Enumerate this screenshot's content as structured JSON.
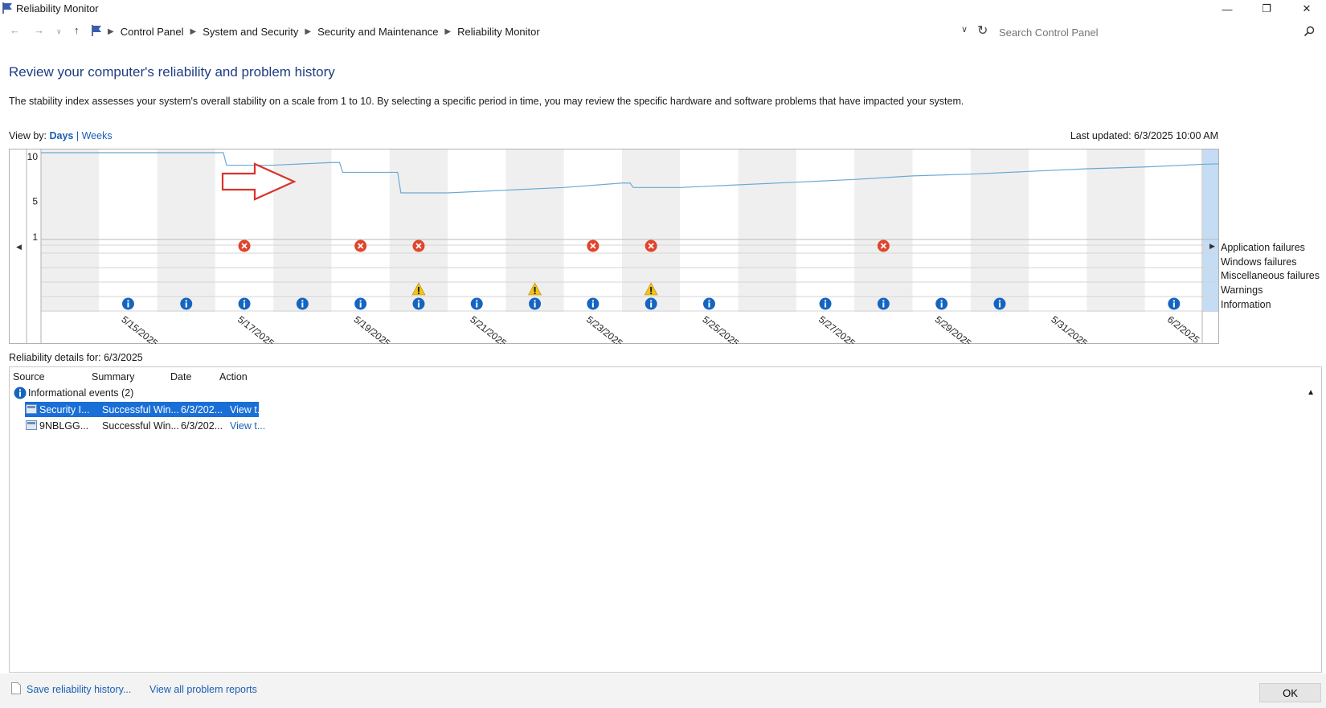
{
  "window": {
    "title": "Reliability Monitor"
  },
  "breadcrumbs": [
    "Control Panel",
    "System and Security",
    "Security and Maintenance",
    "Reliability Monitor"
  ],
  "search": {
    "placeholder": "Search Control Panel",
    "value": ""
  },
  "heading": "Review your computer's reliability and problem history",
  "description": "The stability index assesses your system's overall stability on a scale from 1 to 10. By selecting a specific period in time, you may review the specific hardware and software problems that have impacted your system.",
  "view_by": {
    "label": "View by:",
    "days": "Days",
    "separator": "|",
    "weeks": "Weeks",
    "selected": "Days"
  },
  "last_updated": "Last updated: 6/3/2025 10:00 AM",
  "chart_data": {
    "type": "line",
    "title": "",
    "y_ticks": [
      "10",
      "5",
      "1"
    ],
    "ylim": [
      1,
      10
    ],
    "legend": [
      "Application failures",
      "Windows failures",
      "Miscellaneous failures",
      "Warnings",
      "Information"
    ],
    "legend_position": "right",
    "x_labels": [
      "5/15/2025",
      "5/17/2025",
      "5/19/2025",
      "5/21/2025",
      "5/23/2025",
      "5/25/2025",
      "5/27/2025",
      "5/29/2025",
      "5/31/2025",
      "6/2/2025"
    ],
    "days": [
      "5/14/2025",
      "5/15/2025",
      "5/16/2025",
      "5/17/2025",
      "5/18/2025",
      "5/19/2025",
      "5/20/2025",
      "5/21/2025",
      "5/22/2025",
      "5/23/2025",
      "5/24/2025",
      "5/25/2025",
      "5/26/2025",
      "5/27/2025",
      "5/28/2025",
      "5/29/2025",
      "5/30/2025",
      "5/31/2025",
      "6/1/2025",
      "6/2/2025",
      "6/3/2025"
    ],
    "selected_day": "6/3/2025",
    "stability_index": [
      10,
      10,
      10,
      8.6,
      8.9,
      7.8,
      5.5,
      5.8,
      6.1,
      6.6,
      6.1,
      6.4,
      6.7,
      7.0,
      7.4,
      7.6,
      7.9,
      8.2,
      8.4,
      8.7,
      8.9
    ],
    "application_failures": [
      "5/17/2025",
      "5/19/2025",
      "5/20/2025",
      "5/23/2025",
      "5/24/2025",
      "5/28/2025"
    ],
    "warnings": [
      "5/20/2025",
      "5/22/2025",
      "5/24/2025"
    ],
    "information": [
      "5/15/2025",
      "5/16/2025",
      "5/17/2025",
      "5/18/2025",
      "5/19/2025",
      "5/20/2025",
      "5/21/2025",
      "5/22/2025",
      "5/23/2025",
      "5/24/2025",
      "5/25/2025",
      "5/27/2025",
      "5/28/2025",
      "5/29/2025",
      "5/30/2025",
      "6/2/2025",
      "6/3/2025"
    ]
  },
  "details": {
    "label": "Reliability details for: 6/3/2025",
    "columns": [
      "Source",
      "Summary",
      "Date",
      "Action"
    ],
    "group": "Informational events (2)",
    "rows": [
      {
        "source": "Security I...",
        "summary": "Successful Win...",
        "date": "6/3/202...",
        "action": "View t...",
        "selected": true
      },
      {
        "source": "9NBLGG...",
        "summary": "Successful Win...",
        "date": "6/3/202...",
        "action": "View t...",
        "selected": false
      }
    ]
  },
  "footer": {
    "save": "Save reliability history...",
    "view_all": "View all problem reports",
    "ok": "OK"
  },
  "colors": {
    "accent": "#1a5fb4",
    "failure": "#e0442b",
    "warning": "#f2c318",
    "info": "#1565c0",
    "stability_line": "#6aa9d4",
    "selected_column": "#c5dcf5"
  }
}
